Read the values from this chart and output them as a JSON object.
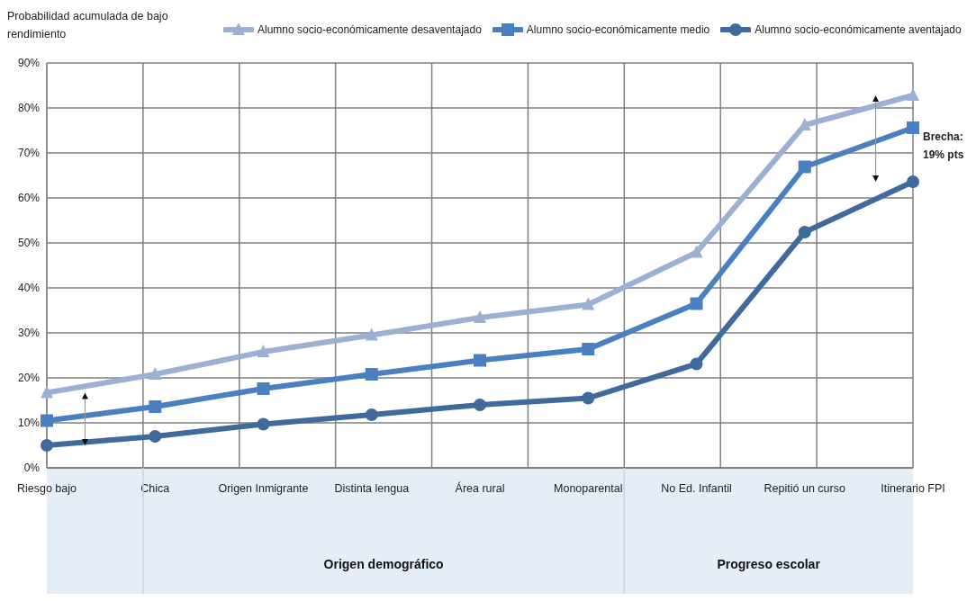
{
  "chart_data": {
    "type": "line",
    "ylabel": "Probabilidad acumulada de bajo rendimiento",
    "categories": [
      "Riesgo bajo",
      "Chica",
      "Origen Inmigrante",
      "Distinta lengua",
      "Área rural",
      "Monoparental",
      "No Ed. Infantil",
      "Repitió un curso",
      "Itinerario FPI"
    ],
    "series": [
      {
        "name": "Alumno socio-económicamente desaventajado",
        "color": "#9bb0d3",
        "marker": "triangle",
        "values": [
          16.7,
          20.8,
          25.8,
          29.5,
          33.4,
          36.3,
          47.9,
          76.2,
          82.8
        ]
      },
      {
        "name": "Alumno socio-económicamente medio",
        "color": "#4a80c0",
        "marker": "square",
        "values": [
          10.5,
          13.6,
          17.6,
          20.8,
          23.9,
          26.4,
          36.5,
          66.9,
          75.6
        ]
      },
      {
        "name": "Alumno socio-económicamente aventajado",
        "color": "#3f6a9b",
        "marker": "circle",
        "values": [
          5.0,
          7.0,
          9.7,
          11.8,
          14.0,
          15.5,
          23.1,
          52.4,
          63.6
        ]
      }
    ],
    "ylim": [
      0,
      90
    ],
    "yticks": [
      {
        "value": 0,
        "label": "0%"
      },
      {
        "value": 10,
        "label": "10%"
      },
      {
        "value": 20,
        "label": "20%"
      },
      {
        "value": 30,
        "label": "30%"
      },
      {
        "value": 40,
        "label": "40%"
      },
      {
        "value": 50,
        "label": "50%"
      },
      {
        "value": 60,
        "label": "60%"
      },
      {
        "value": 70,
        "label": "70%"
      },
      {
        "value": 80,
        "label": "80%"
      },
      {
        "value": 90,
        "label": "90%"
      }
    ],
    "grid": true,
    "legend": "top",
    "line_style": "solid",
    "annotations": [
      "Brecha: 19% pts",
      "Origen demográfico",
      "Progreso escolar"
    ]
  }
}
